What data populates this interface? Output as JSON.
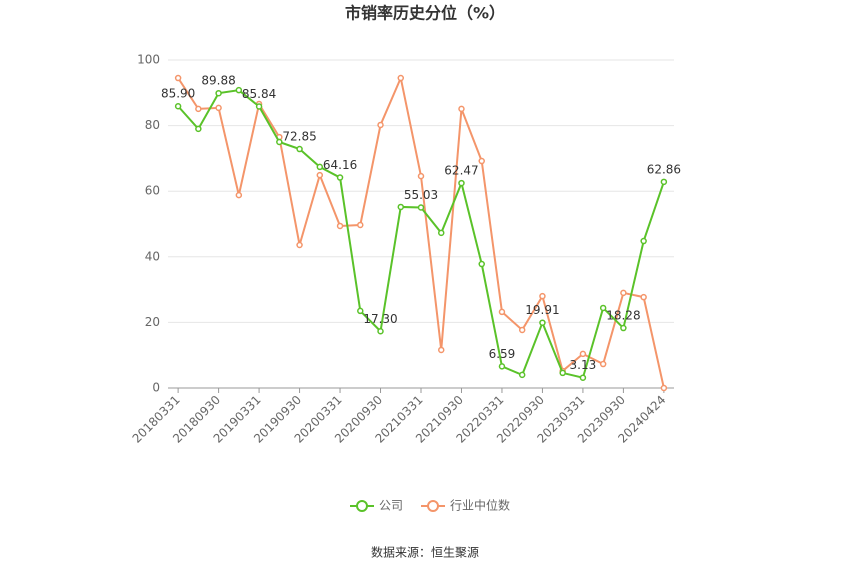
{
  "chart_data": {
    "type": "line",
    "title": "市销率历史分位（%）",
    "categories": [
      "20180331",
      null,
      "20180930",
      null,
      "20190331",
      null,
      "20190930",
      null,
      "20200331",
      null,
      "20200930",
      null,
      "20210331",
      null,
      "20210930",
      null,
      "20220331",
      null,
      "20220930",
      null,
      "20230331",
      null,
      "20230930",
      null,
      "20240424"
    ],
    "series": [
      {
        "name": "公司",
        "color": "#5ac229",
        "values": [
          85.9,
          79.0,
          89.88,
          90.8,
          85.84,
          75.0,
          72.85,
          67.4,
          64.16,
          23.5,
          17.3,
          55.2,
          55.03,
          47.3,
          62.47,
          37.8,
          6.59,
          4.0,
          19.91,
          4.6,
          3.13,
          24.4,
          18.28,
          44.8,
          62.86
        ],
        "value_labels": [
          "85.90",
          null,
          "89.88",
          null,
          "85.84",
          null,
          "72.85",
          null,
          "64.16",
          null,
          "17.30",
          null,
          "55.03",
          null,
          "62.47",
          null,
          "6.59",
          null,
          "19.91",
          null,
          "3.13",
          null,
          "18.28",
          null,
          "62.86"
        ]
      },
      {
        "name": "行业中位数",
        "color": "#f4956a",
        "values": [
          94.5,
          85.1,
          85.4,
          58.8,
          86.6,
          76.5,
          43.6,
          64.9,
          49.4,
          49.7,
          80.2,
          94.5,
          64.6,
          11.6,
          85.1,
          69.2,
          23.2,
          17.7,
          28.0,
          5.2,
          10.4,
          7.3,
          29.0,
          27.7,
          0
        ]
      }
    ],
    "ylim": [
      0,
      100
    ],
    "yticks": [
      0,
      20,
      40,
      60,
      80,
      100
    ],
    "grid": true,
    "source": "数据来源：恒生聚源"
  }
}
